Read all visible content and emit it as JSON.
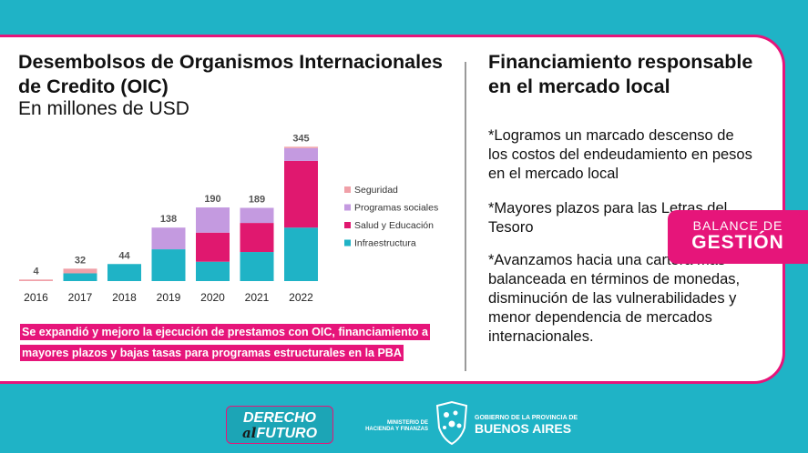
{
  "left_panel": {
    "title": "Desembolsos de Organismos Internacionales de Credito (OIC)",
    "subtitle": "En millones de USD",
    "highlight": "Se expandió y mejoro la ejecución de prestamos con OIC, financiamiento a mayores plazos y bajas tasas para programas estructurales en la PBA"
  },
  "right_panel": {
    "title": "Financiamiento responsable en el mercado local",
    "paragraph1": "*Logramos un marcado descenso de los costos del endeudamiento en pesos en el mercado local",
    "paragraph2": "*Mayores plazos para las Letras del Tesoro",
    "paragraph3": "*Avanzamos hacia una cartera más balanceada en términos de monedas, disminución de las vulnerabilidades y menor dependencia de mercados internacionales."
  },
  "badge": {
    "line1": "BALANCE DE",
    "line2": "GESTIÓN"
  },
  "footer": {
    "logo_line1": "DERECHO",
    "logo_al": "al",
    "logo_line2": "FUTURO",
    "ministry": "MINISTERIO DE HACIENDA Y FINANZAS",
    "gov_line1": "GOBIERNO DE LA PROVINCIA DE",
    "gov_line2": "BUENOS AIRES"
  },
  "colors": {
    "seguridad": "#f0a0a8",
    "programas_sociales": "#c49ae0",
    "salud_educacion": "#e0186f",
    "infraestructura": "#1fb3c6",
    "accent": "#e6157a"
  },
  "chart_data": {
    "type": "bar",
    "stacked": true,
    "categories": [
      "2016",
      "2017",
      "2018",
      "2019",
      "2020",
      "2021",
      "2022"
    ],
    "totals": [
      4,
      32,
      44,
      138,
      190,
      189,
      345
    ],
    "legend_position": "right",
    "series": [
      {
        "name": "Infraestructura",
        "values": [
          0,
          20,
          44,
          82,
          50,
          75,
          138
        ]
      },
      {
        "name": "Salud y Educación",
        "values": [
          0,
          0,
          0,
          0,
          75,
          75,
          172
        ]
      },
      {
        "name": "Programas sociales",
        "values": [
          0,
          0,
          0,
          56,
          65,
          39,
          33
        ]
      },
      {
        "name": "Seguridad",
        "values": [
          4,
          12,
          0,
          0,
          0,
          0,
          2
        ]
      }
    ],
    "ylim": [
      0,
      345
    ]
  }
}
